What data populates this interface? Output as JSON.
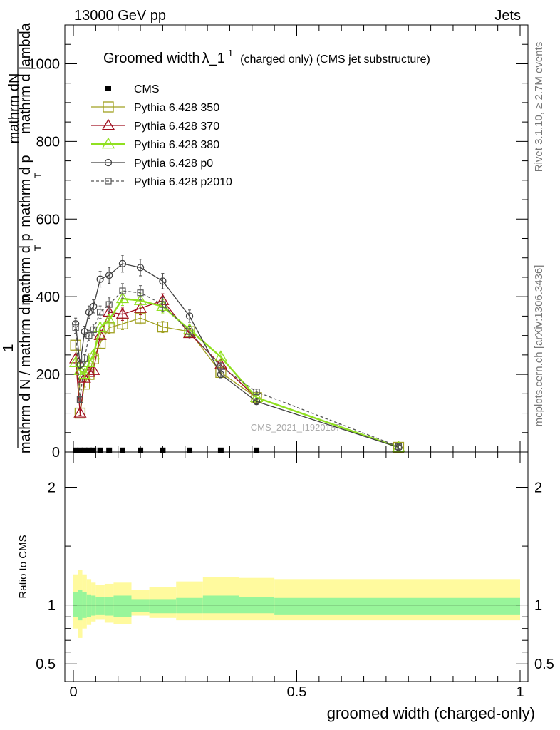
{
  "header": {
    "energy": "13000 GeV pp",
    "category": "Jets"
  },
  "side_labels": {
    "rivet": "Rivet 3.1.10, ≥ 2.7M events",
    "site": "mcplots.cern.ch [arXiv:1306.3436]"
  },
  "watermark": "CMS_2021_I1920187",
  "ratio_ylabel": "Ratio to CMS",
  "chart_data": [
    {
      "type": "line",
      "title_main": "Groomed width",
      "title_lambda": "λ_1",
      "title_sup": "1",
      "title_rest": "(charged only) (CMS jet substructure)",
      "ylabel_top": "1",
      "ylabel_top2": "mathrm dN",
      "ylabel_top3": "mathrm d p",
      "ylabel_top4": "mathrm d lambda",
      "ylabel_bottom": "mathrm d N / mathrm d p",
      "ylabel_bottom2": "mathrm d p",
      "ylabel_sub": "T",
      "xlabel": "groomed width (charged-only)",
      "xlim": [
        0,
        1
      ],
      "ylim": [
        0,
        1100
      ],
      "yticks": [
        0,
        200,
        400,
        600,
        800,
        1000
      ],
      "ytick_labels": [
        "0",
        "200",
        "400",
        "600",
        "800",
        "1000"
      ],
      "legend_position": "top-left",
      "series": [
        {
          "name": "CMS",
          "color": "#000000",
          "marker": "filled-square",
          "x": [
            0.005,
            0.015,
            0.025,
            0.035,
            0.045,
            0.06,
            0.08,
            0.11,
            0.15,
            0.2,
            0.26,
            0.33,
            0.41
          ],
          "y": [
            4,
            4,
            4,
            4,
            4,
            4,
            4,
            4,
            4,
            4,
            4,
            4,
            4
          ]
        },
        {
          "name": "Pythia 6.428 350",
          "color": "#a0a020",
          "marker": "open-square",
          "x": [
            0.005,
            0.015,
            0.025,
            0.035,
            0.045,
            0.06,
            0.08,
            0.11,
            0.15,
            0.2,
            0.26,
            0.33,
            0.41,
            0.728
          ],
          "y": [
            275,
            100,
            175,
            200,
            240,
            280,
            320,
            330,
            345,
            322,
            310,
            205,
            140,
            12
          ]
        },
        {
          "name": "Pythia 6.428 370",
          "color": "#a01020",
          "marker": "open-triangle",
          "x": [
            0.005,
            0.015,
            0.025,
            0.035,
            0.045,
            0.06,
            0.08,
            0.11,
            0.15,
            0.2,
            0.26,
            0.33,
            0.41,
            0.728
          ],
          "y": [
            240,
            100,
            190,
            205,
            210,
            300,
            360,
            355,
            370,
            390,
            305,
            225,
            140,
            12
          ]
        },
        {
          "name": "Pythia 6.428 380",
          "color": "#90e020",
          "marker": "open-triangle",
          "x": [
            0.005,
            0.015,
            0.025,
            0.035,
            0.045,
            0.06,
            0.08,
            0.11,
            0.15,
            0.2,
            0.26,
            0.33,
            0.41,
            0.728
          ],
          "y": [
            230,
            210,
            200,
            230,
            250,
            320,
            340,
            395,
            390,
            375,
            315,
            245,
            140,
            12
          ]
        },
        {
          "name": "Pythia 6.428 p0",
          "color": "#404040",
          "marker": "open-circle",
          "x": [
            0.005,
            0.015,
            0.025,
            0.035,
            0.045,
            0.06,
            0.08,
            0.11,
            0.15,
            0.2,
            0.26,
            0.33,
            0.41,
            0.728
          ],
          "y": [
            330,
            225,
            310,
            360,
            375,
            445,
            455,
            485,
            475,
            440,
            350,
            200,
            130,
            12
          ]
        },
        {
          "name": "Pythia 6.428 p2010",
          "color": "#555555",
          "marker": "open-small-square",
          "x": [
            0.005,
            0.015,
            0.025,
            0.035,
            0.045,
            0.06,
            0.08,
            0.11,
            0.15,
            0.2,
            0.26,
            0.33,
            0.41,
            0.728
          ],
          "y": [
            320,
            135,
            240,
            300,
            315,
            360,
            380,
            415,
            410,
            380,
            310,
            220,
            155,
            14
          ]
        }
      ]
    },
    {
      "type": "area",
      "ylabel": "Ratio to CMS",
      "xlabel": "groomed width (charged-only)",
      "xlim": [
        0,
        1
      ],
      "ylim": [
        0.35,
        2.3
      ],
      "yticks": [
        0.5,
        1,
        2
      ],
      "ytick_labels": [
        "0.5",
        "1",
        "2"
      ],
      "xticks": [
        0,
        0.5,
        1
      ],
      "xtick_labels": [
        "0",
        "0.5",
        "1"
      ],
      "bins": [
        0,
        0.01,
        0.02,
        0.03,
        0.04,
        0.05,
        0.07,
        0.09,
        0.13,
        0.17,
        0.23,
        0.29,
        0.37,
        0.45,
        1.0
      ],
      "band_outer": [
        [
          0.8,
          1.26
        ],
        [
          0.72,
          1.3
        ],
        [
          0.8,
          1.26
        ],
        [
          0.83,
          1.22
        ],
        [
          0.86,
          1.19
        ],
        [
          0.88,
          1.17
        ],
        [
          0.85,
          1.18
        ],
        [
          0.84,
          1.19
        ],
        [
          0.91,
          1.13
        ],
        [
          0.89,
          1.15
        ],
        [
          0.87,
          1.2
        ],
        [
          0.87,
          1.24
        ],
        [
          0.87,
          1.23
        ],
        [
          0.87,
          1.22
        ]
      ],
      "band_inner": [
        [
          0.9,
          1.11
        ],
        [
          0.87,
          1.13
        ],
        [
          0.89,
          1.11
        ],
        [
          0.9,
          1.09
        ],
        [
          0.91,
          1.08
        ],
        [
          0.92,
          1.07
        ],
        [
          0.91,
          1.07
        ],
        [
          0.9,
          1.08
        ],
        [
          0.94,
          1.05
        ],
        [
          0.93,
          1.05
        ],
        [
          0.93,
          1.06
        ],
        [
          0.93,
          1.08
        ],
        [
          0.93,
          1.07
        ],
        [
          0.92,
          1.06
        ]
      ],
      "band_colors": {
        "outer": "#fffa9e",
        "inner": "#98f59a"
      }
    }
  ]
}
